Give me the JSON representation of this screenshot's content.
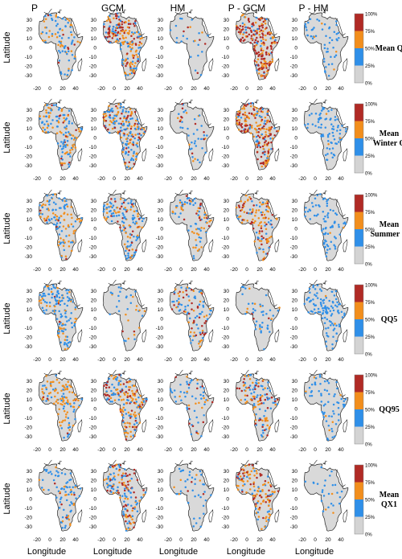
{
  "column_headers": [
    "P",
    "GCM",
    "HM",
    "P - GCM",
    "P - HM"
  ],
  "row_labels": [
    [
      "Mean Q"
    ],
    [
      "Mean",
      "Winter Q"
    ],
    [
      "Mean",
      "Summer Q"
    ],
    [
      "QQ5"
    ],
    [
      "QQ95"
    ],
    [
      "Mean",
      "QX1"
    ]
  ],
  "axis": {
    "ylabel": "Latitude",
    "xlabel": "Longitude",
    "yticks": [
      "30",
      "20",
      "10",
      "0",
      "-10",
      "-20",
      "-30"
    ],
    "xticks": [
      "-20",
      "0",
      "20",
      "40"
    ]
  },
  "colorbar": {
    "ticks": [
      "100%",
      "75%",
      "50%",
      "25%",
      "0%"
    ],
    "colors": [
      "#b02a25",
      "#f28e1c",
      "#2f8fe8",
      "#d3d3d3"
    ]
  },
  "colors": {
    "land": "#d9d9d9",
    "outline": "#222222"
  }
}
